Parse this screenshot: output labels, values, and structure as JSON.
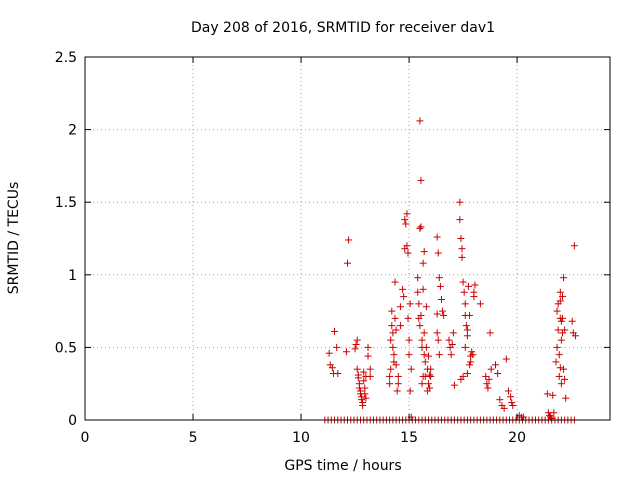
{
  "chart_data": {
    "type": "scatter",
    "title": "Day 208 of 2016, SRMTID for receiver dav1",
    "xlabel": "GPS time / hours",
    "ylabel": "SRMTID / TECUs",
    "xlim": [
      0,
      24.3
    ],
    "ylim": [
      0,
      2.5
    ],
    "x_ticks": [
      0,
      5,
      10,
      15,
      20
    ],
    "x_tick_labels": [
      "0",
      "5",
      "10",
      "15",
      "20"
    ],
    "y_ticks": [
      0,
      0.5,
      1,
      1.5,
      2,
      2.5
    ],
    "y_tick_labels": [
      "0",
      "0.5",
      "1",
      "1.5",
      "2",
      "2.5"
    ],
    "grid": true,
    "marker": "+",
    "color": "#cc0000",
    "series": [
      {
        "name": "SRMTID",
        "points": [
          [
            11.3,
            0.46
          ],
          [
            11.35,
            0.38
          ],
          [
            11.45,
            0.36
          ],
          [
            11.5,
            0.32
          ],
          [
            11.55,
            0.61
          ],
          [
            11.65,
            0.5
          ],
          [
            11.7,
            0.32
          ],
          [
            12.2,
            1.24
          ],
          [
            12.15,
            1.08
          ],
          [
            12.1,
            0.47
          ],
          [
            12.5,
            0.49
          ],
          [
            12.55,
            0.52
          ],
          [
            12.6,
            0.55
          ],
          [
            12.6,
            0.35
          ],
          [
            12.65,
            0.31
          ],
          [
            12.65,
            0.29
          ],
          [
            12.7,
            0.25
          ],
          [
            12.7,
            0.22
          ],
          [
            12.75,
            0.2
          ],
          [
            12.75,
            0.18
          ],
          [
            12.8,
            0.16
          ],
          [
            12.8,
            0.14
          ],
          [
            12.85,
            0.12
          ],
          [
            12.85,
            0.1
          ],
          [
            12.9,
            0.27
          ],
          [
            12.9,
            0.33
          ],
          [
            12.95,
            0.18
          ],
          [
            12.95,
            0.22
          ],
          [
            13.0,
            0.15
          ],
          [
            13.0,
            0.3
          ],
          [
            13.1,
            0.5
          ],
          [
            13.1,
            0.44
          ],
          [
            13.2,
            0.35
          ],
          [
            13.2,
            0.3
          ],
          [
            14.1,
            0.3
          ],
          [
            14.1,
            0.25
          ],
          [
            14.15,
            0.35
          ],
          [
            14.15,
            0.55
          ],
          [
            14.2,
            0.65
          ],
          [
            14.2,
            0.75
          ],
          [
            14.25,
            0.6
          ],
          [
            14.25,
            0.5
          ],
          [
            14.3,
            0.45
          ],
          [
            14.3,
            0.4
          ],
          [
            14.35,
            0.95
          ],
          [
            14.35,
            0.7
          ],
          [
            14.4,
            0.62
          ],
          [
            14.4,
            0.38
          ],
          [
            14.45,
            0.2
          ],
          [
            14.5,
            0.25
          ],
          [
            14.5,
            0.3
          ],
          [
            14.6,
            0.78
          ],
          [
            14.6,
            0.65
          ],
          [
            14.7,
            0.9
          ],
          [
            14.75,
            0.85
          ],
          [
            14.8,
            1.18
          ],
          [
            14.8,
            1.38
          ],
          [
            14.85,
            1.35
          ],
          [
            14.9,
            1.42
          ],
          [
            14.9,
            1.2
          ],
          [
            14.95,
            1.15
          ],
          [
            14.95,
            0.7
          ],
          [
            15.0,
            0.55
          ],
          [
            15.0,
            0.45
          ],
          [
            15.05,
            0.8
          ],
          [
            15.05,
            0.2
          ],
          [
            15.1,
            0.35
          ],
          [
            15.1,
            0.02
          ],
          [
            15.4,
            0.98
          ],
          [
            15.4,
            0.88
          ],
          [
            15.45,
            0.8
          ],
          [
            15.45,
            0.7
          ],
          [
            15.5,
            2.06
          ],
          [
            15.5,
            1.32
          ],
          [
            15.5,
            0.65
          ],
          [
            15.55,
            1.65
          ],
          [
            15.55,
            1.33
          ],
          [
            15.55,
            0.72
          ],
          [
            15.6,
            0.55
          ],
          [
            15.6,
            0.5
          ],
          [
            15.65,
            1.08
          ],
          [
            15.65,
            0.9
          ],
          [
            15.7,
            1.16
          ],
          [
            15.7,
            0.6
          ],
          [
            15.75,
            0.4
          ],
          [
            15.75,
            0.3
          ],
          [
            15.8,
            0.78
          ],
          [
            15.8,
            0.5
          ],
          [
            15.85,
            0.35
          ],
          [
            15.85,
            0.2
          ],
          [
            15.9,
            0.25
          ],
          [
            15.9,
            0.44
          ],
          [
            15.95,
            0.31
          ],
          [
            15.95,
            0.22
          ],
          [
            16.0,
            0.3
          ],
          [
            16.0,
            0.35
          ],
          [
            15.6,
            0.25
          ],
          [
            15.65,
            0.3
          ],
          [
            15.7,
            0.45
          ],
          [
            16.3,
            1.26
          ],
          [
            16.35,
            1.15
          ],
          [
            16.4,
            0.98
          ],
          [
            16.45,
            0.92
          ],
          [
            16.5,
            0.83
          ],
          [
            16.55,
            0.75
          ],
          [
            16.6,
            0.72
          ],
          [
            16.3,
            0.73
          ],
          [
            16.3,
            0.6
          ],
          [
            16.35,
            0.55
          ],
          [
            16.4,
            0.45
          ],
          [
            16.85,
            0.55
          ],
          [
            16.9,
            0.5
          ],
          [
            16.95,
            0.45
          ],
          [
            17.0,
            0.52
          ],
          [
            17.05,
            0.6
          ],
          [
            17.1,
            0.24
          ],
          [
            17.35,
            1.5
          ],
          [
            17.35,
            1.38
          ],
          [
            17.4,
            1.25
          ],
          [
            17.45,
            1.18
          ],
          [
            17.45,
            1.12
          ],
          [
            17.5,
            0.95
          ],
          [
            17.55,
            0.88
          ],
          [
            17.6,
            0.8
          ],
          [
            17.6,
            0.72
          ],
          [
            17.65,
            0.65
          ],
          [
            17.7,
            0.62
          ],
          [
            17.7,
            0.58
          ],
          [
            17.75,
            0.92
          ],
          [
            17.8,
            0.72
          ],
          [
            17.85,
            0.44
          ],
          [
            17.85,
            0.4
          ],
          [
            17.9,
            0.47
          ],
          [
            17.95,
            0.45
          ],
          [
            18.0,
            0.88
          ],
          [
            18.0,
            0.85
          ],
          [
            18.05,
            0.93
          ],
          [
            17.4,
            0.28
          ],
          [
            17.5,
            0.3
          ],
          [
            17.6,
            0.5
          ],
          [
            17.7,
            0.32
          ],
          [
            17.8,
            0.38
          ],
          [
            18.3,
            0.8
          ],
          [
            18.55,
            0.3
          ],
          [
            18.6,
            0.25
          ],
          [
            18.65,
            0.22
          ],
          [
            18.7,
            0.28
          ],
          [
            18.75,
            0.6
          ],
          [
            18.8,
            0.35
          ],
          [
            19.0,
            0.38
          ],
          [
            19.1,
            0.32
          ],
          [
            19.2,
            0.14
          ],
          [
            19.3,
            0.1
          ],
          [
            19.4,
            0.08
          ],
          [
            19.5,
            0.42
          ],
          [
            19.6,
            0.2
          ],
          [
            19.7,
            0.16
          ],
          [
            19.75,
            0.12
          ],
          [
            19.8,
            0.1
          ],
          [
            20.1,
            0.03
          ],
          [
            20.2,
            0.02
          ],
          [
            20.3,
            0.02
          ],
          [
            21.4,
            0.18
          ],
          [
            21.45,
            0.05
          ],
          [
            21.5,
            0.03
          ],
          [
            21.55,
            0.02
          ],
          [
            21.6,
            0.01
          ],
          [
            21.65,
            0.17
          ],
          [
            21.7,
            0.05
          ],
          [
            21.8,
            0.4
          ],
          [
            21.85,
            0.5
          ],
          [
            21.85,
            0.75
          ],
          [
            21.9,
            0.8
          ],
          [
            21.9,
            0.62
          ],
          [
            21.95,
            0.45
          ],
          [
            21.95,
            0.3
          ],
          [
            22.0,
            0.82
          ],
          [
            22.0,
            0.7
          ],
          [
            22.05,
            0.68
          ],
          [
            22.05,
            0.55
          ],
          [
            22.1,
            0.85
          ],
          [
            22.1,
            0.6
          ],
          [
            22.15,
            0.98
          ],
          [
            22.15,
            0.35
          ],
          [
            22.2,
            0.62
          ],
          [
            22.2,
            0.28
          ],
          [
            22.25,
            0.15
          ],
          [
            22.0,
            0.36
          ],
          [
            22.05,
            0.25
          ],
          [
            22.55,
            0.68
          ],
          [
            22.6,
            0.6
          ],
          [
            22.65,
            1.2
          ],
          [
            22.7,
            0.58
          ],
          [
            22.0,
            0.88
          ],
          [
            22.1,
            0.7
          ]
        ]
      }
    ],
    "zero_points_x": [
      11.1,
      11.25,
      11.4,
      11.55,
      11.7,
      11.85,
      12.0,
      12.15,
      12.3,
      12.45,
      12.6,
      12.75,
      12.9,
      13.05,
      13.2,
      13.35,
      13.5,
      13.65,
      13.8,
      13.95,
      14.1,
      14.25,
      14.4,
      14.55,
      14.7,
      14.85,
      15.0,
      15.15,
      15.3,
      15.45,
      15.6,
      15.75,
      15.9,
      16.05,
      16.2,
      16.35,
      16.5,
      16.65,
      16.8,
      16.95,
      17.1,
      17.25,
      17.4,
      17.55,
      17.7,
      17.85,
      18.0,
      18.15,
      18.3,
      18.45,
      18.6,
      18.75,
      18.9,
      19.05,
      19.2,
      19.35,
      19.5,
      19.65,
      19.8,
      19.95,
      20.1,
      20.25,
      20.4,
      20.55,
      20.7,
      20.85,
      21.0,
      21.15,
      21.3,
      21.45,
      21.6,
      21.75,
      21.9,
      22.05,
      22.2,
      22.35,
      22.5,
      22.65
    ]
  }
}
